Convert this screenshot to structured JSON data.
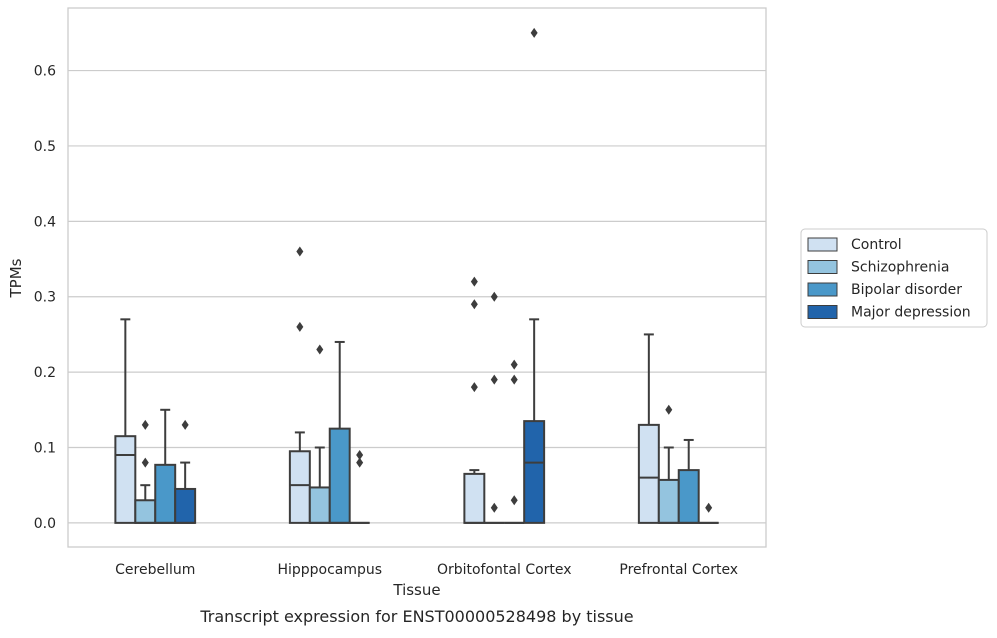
{
  "chart_data": {
    "type": "box",
    "title": "",
    "caption": "Transcript expression for ENST00000528498 by tissue",
    "xlabel": "Tissue",
    "ylabel": "TPMs",
    "ylim": [
      -0.032,
      0.683
    ],
    "yticks": [
      "0.0",
      "0.1",
      "0.2",
      "0.3",
      "0.4",
      "0.5",
      "0.6"
    ],
    "ytick_values": [
      0,
      0.1,
      0.2,
      0.3,
      0.4,
      0.5,
      0.6
    ],
    "grid": "horizontal",
    "legend_position": "right",
    "categories": [
      "Cerebellum",
      "Hipppocampus",
      "Orbitofontal Cortex",
      "Prefrontal Cortex"
    ],
    "series": [
      {
        "name": "Control",
        "color": "#d0e1f2",
        "boxes": [
          {
            "q1": 0,
            "median": 0.09,
            "q3": 0.115,
            "whisker_low": 0,
            "whisker_high": 0.27,
            "outliers": []
          },
          {
            "q1": 0,
            "median": 0.05,
            "q3": 0.095,
            "whisker_low": 0,
            "whisker_high": 0.12,
            "outliers": [
              0.36,
              0.26
            ]
          },
          {
            "q1": 0,
            "median": 0,
            "q3": 0.065,
            "whisker_low": 0,
            "whisker_high": 0.07,
            "outliers": [
              0.32,
              0.29,
              0.18
            ]
          },
          {
            "q1": 0,
            "median": 0.06,
            "q3": 0.13,
            "whisker_low": 0,
            "whisker_high": 0.25,
            "outliers": []
          }
        ]
      },
      {
        "name": "Schizophrenia",
        "color": "#94c4df",
        "boxes": [
          {
            "q1": 0,
            "median": 0,
            "q3": 0.03,
            "whisker_low": 0,
            "whisker_high": 0.05,
            "outliers": [
              0.13,
              0.08
            ]
          },
          {
            "q1": 0,
            "median": 0,
            "q3": 0.047,
            "whisker_low": 0,
            "whisker_high": 0.1,
            "outliers": [
              0.23
            ]
          },
          {
            "q1": 0,
            "median": 0,
            "q3": 0,
            "whisker_low": 0,
            "whisker_high": 0,
            "outliers": [
              0.3,
              0.19,
              0.02
            ]
          },
          {
            "q1": 0,
            "median": 0,
            "q3": 0.057,
            "whisker_low": 0,
            "whisker_high": 0.1,
            "outliers": [
              0.15
            ]
          }
        ]
      },
      {
        "name": "Bipolar disorder",
        "color": "#4a98c9",
        "boxes": [
          {
            "q1": 0,
            "median": 0,
            "q3": 0.077,
            "whisker_low": 0,
            "whisker_high": 0.15,
            "outliers": []
          },
          {
            "q1": 0,
            "median": 0,
            "q3": 0.125,
            "whisker_low": 0,
            "whisker_high": 0.24,
            "outliers": []
          },
          {
            "q1": 0,
            "median": 0,
            "q3": 0,
            "whisker_low": 0,
            "whisker_high": 0,
            "outliers": [
              0.21,
              0.19,
              0.03
            ]
          },
          {
            "q1": 0,
            "median": 0,
            "q3": 0.07,
            "whisker_low": 0,
            "whisker_high": 0.11,
            "outliers": []
          }
        ]
      },
      {
        "name": "Major depression",
        "color": "#2164ab",
        "boxes": [
          {
            "q1": 0,
            "median": 0,
            "q3": 0.045,
            "whisker_low": 0,
            "whisker_high": 0.08,
            "outliers": [
              0.13
            ]
          },
          {
            "q1": 0,
            "median": 0,
            "q3": 0,
            "whisker_low": 0,
            "whisker_high": 0,
            "outliers": [
              0.09,
              0.08
            ]
          },
          {
            "q1": 0,
            "median": 0.08,
            "q3": 0.135,
            "whisker_low": 0,
            "whisker_high": 0.27,
            "outliers": [
              0.65
            ]
          },
          {
            "q1": 0,
            "median": 0,
            "q3": 0,
            "whisker_low": 0,
            "whisker_high": 0,
            "outliers": [
              0.02
            ]
          }
        ]
      }
    ]
  }
}
